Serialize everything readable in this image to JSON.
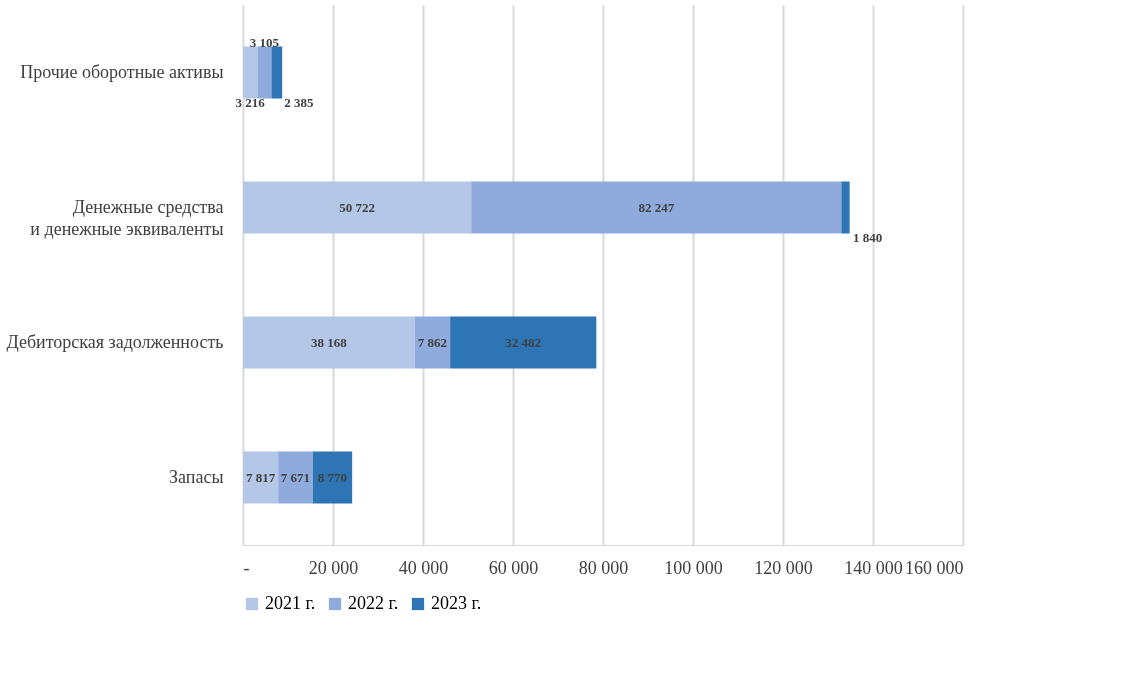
{
  "chart_data": {
    "type": "bar",
    "orientation": "horizontal",
    "stacked": true,
    "categories": [
      "Прочие оборотные активы",
      "Денежные средства\nи денежные эквиваленты",
      "Дебиторская задолженность",
      "Запасы"
    ],
    "series": [
      {
        "name": "2021 г.",
        "color": "#b4c7e7",
        "values": [
          3216,
          50722,
          38168,
          7817
        ],
        "value_labels": [
          "3 216",
          "50 722",
          "38 168",
          "7 817"
        ]
      },
      {
        "name": "2022 г.",
        "color": "#8faadc",
        "values": [
          3105,
          82247,
          7862,
          7671
        ],
        "value_labels": [
          "3 105",
          "82 247",
          "7 862",
          "7 671"
        ]
      },
      {
        "name": "2023 г.",
        "color": "#2e75b6",
        "values": [
          2385,
          1840,
          32482,
          8770
        ],
        "value_labels": [
          "2 385",
          "1 840",
          "32 482",
          "8 770"
        ]
      }
    ],
    "xlim": [
      0,
      160000
    ],
    "xticks": [
      {
        "value": 0,
        "label": "-"
      },
      {
        "value": 20000,
        "label": "20 000"
      },
      {
        "value": 40000,
        "label": "40 000"
      },
      {
        "value": 60000,
        "label": "60 000"
      },
      {
        "value": 80000,
        "label": "80 000"
      },
      {
        "value": 100000,
        "label": "100 000"
      },
      {
        "value": 120000,
        "label": "120 000"
      },
      {
        "value": 140000,
        "label": "140 000"
      },
      {
        "value": 160000,
        "label": "160 000"
      }
    ],
    "grid": "x",
    "legend": "bottom"
  }
}
